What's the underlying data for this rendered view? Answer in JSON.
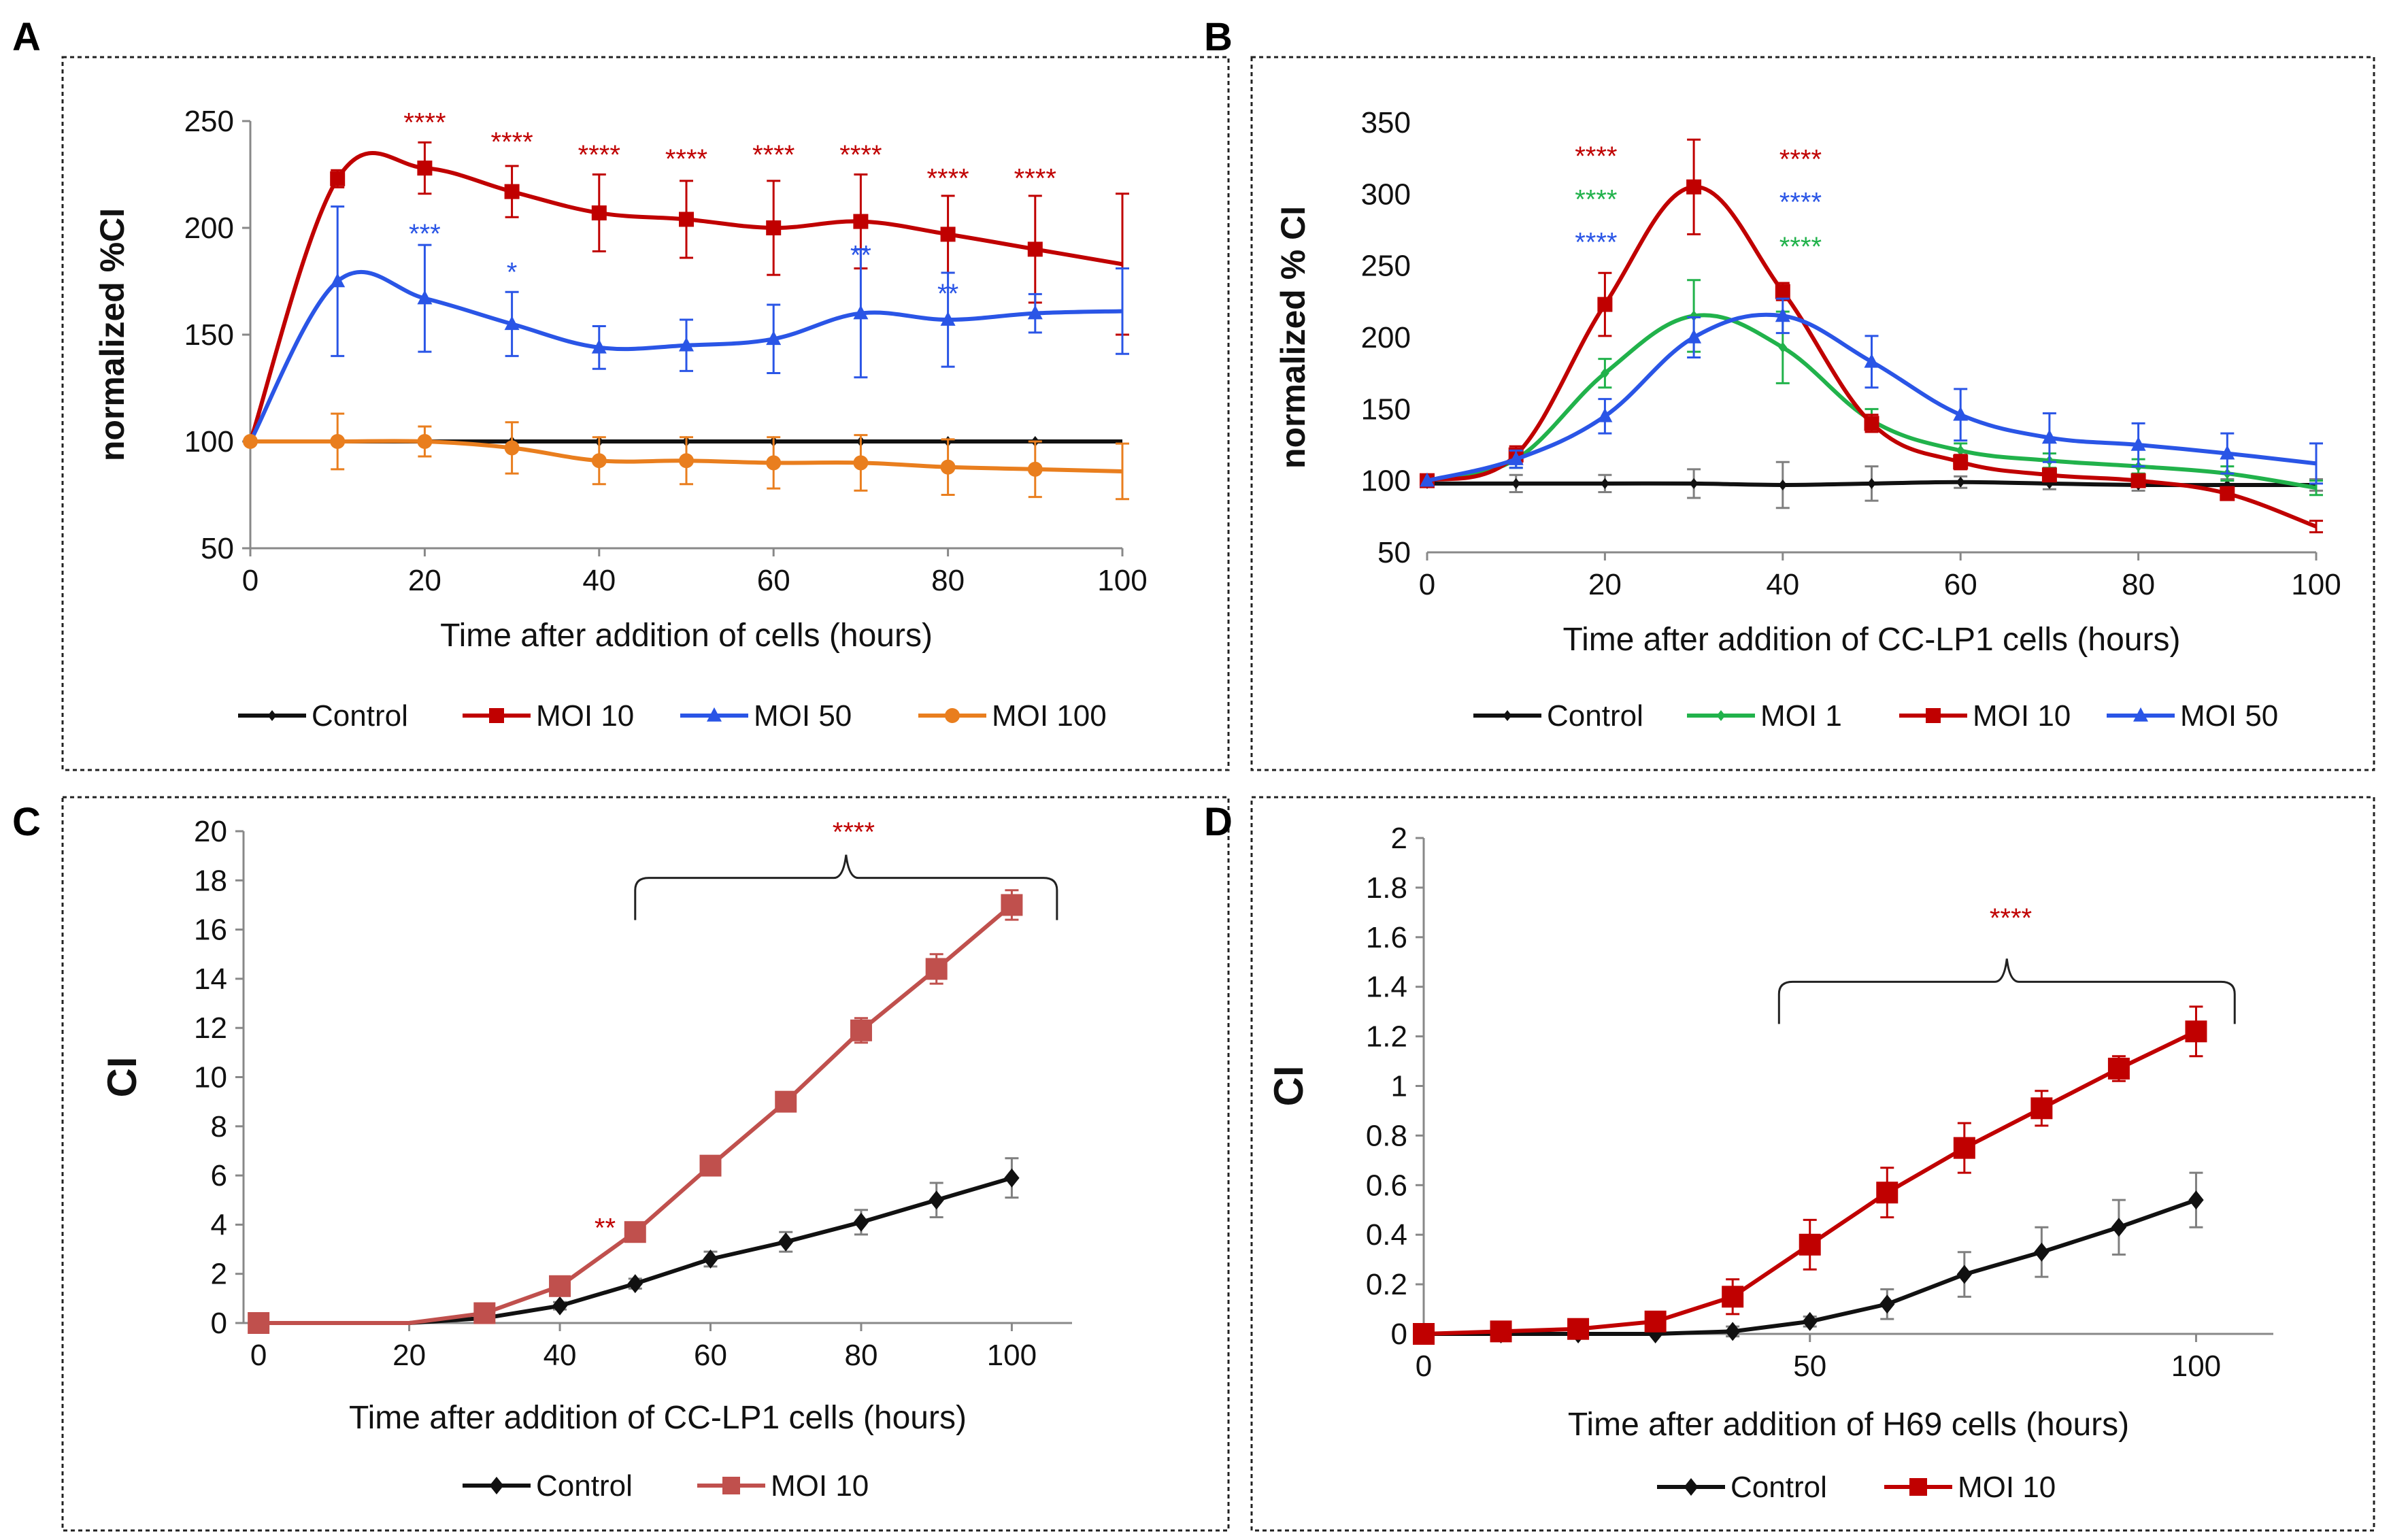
{
  "colors": {
    "control": "#111111",
    "control_err": "#7f7f7f",
    "moi1": "#21b24b",
    "moi10": "#c00000",
    "moi10_c": "#c0504d",
    "moi50": "#2a55e6",
    "moi100": "#e97e1e"
  },
  "chart_data": [
    {
      "panel": "A",
      "type": "line",
      "xlabel": "Time after addition of cells (hours)",
      "ylabel": "normalized %CI",
      "xlim": [
        0,
        100
      ],
      "ylim": [
        50,
        250
      ],
      "xticks": [
        0,
        20,
        40,
        60,
        80,
        100
      ],
      "yticks": [
        50,
        100,
        150,
        200,
        250
      ],
      "series": [
        {
          "name": "Control",
          "color": "control",
          "marker": "diamond",
          "x": [
            0,
            10,
            20,
            30,
            40,
            50,
            60,
            70,
            80,
            90,
            100
          ],
          "y": [
            100,
            100,
            100,
            100,
            100,
            100,
            100,
            100,
            100,
            100,
            100
          ],
          "marker_x": [
            0,
            10,
            20,
            30,
            40,
            50,
            60,
            70,
            80,
            90
          ],
          "err": [
            0,
            0,
            0,
            0,
            0,
            0,
            0,
            0,
            0,
            0,
            0
          ]
        },
        {
          "name": "MOI 10",
          "color": "moi10",
          "marker": "square",
          "x": [
            0,
            10,
            20,
            30,
            40,
            50,
            60,
            70,
            80,
            90,
            100
          ],
          "y": [
            100,
            223,
            228,
            217,
            207,
            204,
            200,
            203,
            197,
            190,
            183
          ],
          "marker_x": [
            10,
            20,
            30,
            40,
            50,
            60,
            70,
            80,
            90
          ],
          "err": [
            0,
            4,
            12,
            12,
            18,
            18,
            22,
            22,
            18,
            25,
            33
          ]
        },
        {
          "name": "MOI 50",
          "color": "moi50",
          "marker": "triangle",
          "x": [
            0,
            10,
            20,
            30,
            40,
            50,
            60,
            70,
            80,
            90,
            100
          ],
          "y": [
            100,
            175,
            167,
            155,
            144,
            145,
            148,
            160,
            157,
            160,
            161
          ],
          "marker_x": [
            10,
            20,
            30,
            40,
            50,
            60,
            70,
            80,
            90
          ],
          "err": [
            0,
            35,
            25,
            15,
            10,
            12,
            16,
            30,
            22,
            9,
            20
          ]
        },
        {
          "name": "MOI 100",
          "color": "moi100",
          "marker": "circle",
          "x": [
            0,
            10,
            20,
            30,
            40,
            50,
            60,
            70,
            80,
            90,
            100
          ],
          "y": [
            100,
            100,
            100,
            97,
            91,
            91,
            90,
            90,
            88,
            87,
            86
          ],
          "marker_x": [
            0,
            10,
            20,
            30,
            40,
            50,
            60,
            70,
            80,
            90
          ],
          "err": [
            0,
            13,
            7,
            12,
            11,
            11,
            12,
            13,
            13,
            13,
            13
          ]
        }
      ],
      "annotations": [
        {
          "x": 20,
          "y": 245,
          "text": "****",
          "color": "moi10"
        },
        {
          "x": 30,
          "y": 236,
          "text": "****",
          "color": "moi10"
        },
        {
          "x": 40,
          "y": 230,
          "text": "****",
          "color": "moi10"
        },
        {
          "x": 50,
          "y": 228,
          "text": "****",
          "color": "moi10"
        },
        {
          "x": 60,
          "y": 230,
          "text": "****",
          "color": "moi10"
        },
        {
          "x": 70,
          "y": 230,
          "text": "****",
          "color": "moi10"
        },
        {
          "x": 80,
          "y": 219,
          "text": "****",
          "color": "moi10"
        },
        {
          "x": 90,
          "y": 219,
          "text": "****",
          "color": "moi10"
        },
        {
          "x": 20,
          "y": 193,
          "text": "***",
          "color": "moi50"
        },
        {
          "x": 30,
          "y": 175,
          "text": "*",
          "color": "moi50"
        },
        {
          "x": 70,
          "y": 183,
          "text": "**",
          "color": "moi50"
        },
        {
          "x": 80,
          "y": 165,
          "text": "**",
          "color": "moi50"
        }
      ]
    },
    {
      "panel": "B",
      "type": "line",
      "xlabel": "Time after addition of CC-LP1 cells (hours)",
      "ylabel": "normalized % CI",
      "xlim": [
        0,
        100
      ],
      "ylim": [
        50,
        350
      ],
      "xticks": [
        0,
        20,
        40,
        60,
        80,
        100
      ],
      "yticks": [
        50,
        100,
        150,
        200,
        250,
        300,
        350
      ],
      "series": [
        {
          "name": "Control",
          "color": "control",
          "marker": "diamond",
          "x": [
            0,
            10,
            20,
            30,
            40,
            50,
            60,
            70,
            80,
            90,
            100
          ],
          "y": [
            98,
            98,
            98,
            98,
            97,
            98,
            99,
            98,
            97,
            97,
            97
          ],
          "marker_x": [
            0,
            10,
            20,
            30,
            40,
            50,
            60,
            70,
            80,
            90
          ],
          "err": [
            0,
            6,
            6,
            10,
            16,
            12,
            4,
            4,
            4,
            4,
            4
          ]
        },
        {
          "name": "MOI 1",
          "color": "moi1",
          "marker": "diamond",
          "x": [
            0,
            10,
            20,
            30,
            40,
            50,
            60,
            70,
            80,
            90,
            100
          ],
          "y": [
            100,
            115,
            175,
            215,
            193,
            142,
            121,
            114,
            110,
            105,
            95
          ],
          "marker_x": [
            0,
            10,
            20,
            30,
            40,
            50,
            60,
            70,
            80,
            90
          ],
          "err": [
            0,
            6,
            10,
            25,
            25,
            8,
            5,
            5,
            5,
            5,
            5
          ]
        },
        {
          "name": "MOI 10",
          "color": "moi10",
          "marker": "square",
          "x": [
            0,
            10,
            20,
            30,
            40,
            50,
            60,
            70,
            80,
            90,
            100
          ],
          "y": [
            100,
            118,
            223,
            305,
            232,
            140,
            113,
            104,
            100,
            91,
            68
          ],
          "marker_x": [
            0,
            10,
            20,
            30,
            40,
            50,
            60,
            70,
            80,
            90
          ],
          "err": [
            0,
            6,
            22,
            33,
            6,
            6,
            5,
            4,
            4,
            4,
            4
          ]
        },
        {
          "name": "MOI 50",
          "color": "moi50",
          "marker": "triangle",
          "x": [
            0,
            10,
            20,
            30,
            40,
            50,
            60,
            70,
            80,
            90,
            100
          ],
          "y": [
            100,
            115,
            145,
            200,
            215,
            183,
            146,
            130,
            125,
            119,
            112
          ],
          "marker_x": [
            0,
            10,
            20,
            30,
            40,
            50,
            60,
            70,
            80,
            90
          ],
          "err": [
            0,
            6,
            12,
            14,
            12,
            18,
            18,
            17,
            15,
            14,
            14
          ]
        }
      ],
      "annotations": [
        {
          "x": 19,
          "y": 320,
          "text": "****",
          "color": "moi10"
        },
        {
          "x": 19,
          "y": 290,
          "text": "****",
          "color": "moi1"
        },
        {
          "x": 19,
          "y": 260,
          "text": "****",
          "color": "moi50"
        },
        {
          "x": 42,
          "y": 318,
          "text": "****",
          "color": "moi10"
        },
        {
          "x": 42,
          "y": 288,
          "text": "****",
          "color": "moi50"
        },
        {
          "x": 42,
          "y": 257,
          "text": "****",
          "color": "moi1"
        }
      ]
    },
    {
      "panel": "C",
      "type": "line",
      "xlabel": "Time after addition of CC-LP1 cells (hours)",
      "ylabel": "CI",
      "xlim": [
        -2,
        108
      ],
      "ylim": [
        0,
        20
      ],
      "xticks": [
        0,
        20,
        40,
        60,
        80,
        100
      ],
      "yticks": [
        0,
        2,
        4,
        6,
        8,
        10,
        12,
        14,
        16,
        18,
        20
      ],
      "series": [
        {
          "name": "Control",
          "color": "control",
          "marker": "diamond",
          "x": [
            0,
            20,
            30,
            40,
            50,
            60,
            70,
            80,
            90,
            100
          ],
          "y": [
            0,
            0,
            0.2,
            0.7,
            1.6,
            2.6,
            3.3,
            4.1,
            5.0,
            5.9
          ],
          "marker_x": [
            0,
            40,
            50,
            60,
            70,
            80,
            90,
            100
          ],
          "err": [
            0,
            0,
            0,
            0.15,
            0.2,
            0.3,
            0.4,
            0.5,
            0.7,
            0.8
          ]
        },
        {
          "name": "MOI 10",
          "color": "moi10_c",
          "marker": "square",
          "x": [
            0,
            20,
            30,
            40,
            50,
            60,
            70,
            80,
            90,
            100
          ],
          "y": [
            0,
            0,
            0.4,
            1.5,
            3.7,
            6.4,
            9.0,
            11.9,
            14.4,
            17.0
          ],
          "marker_x": [
            0,
            30,
            40,
            50,
            60,
            70,
            80,
            90,
            100
          ],
          "err": [
            0,
            0,
            0,
            0.15,
            0.2,
            0.2,
            0.25,
            0.5,
            0.6,
            0.6
          ]
        }
      ],
      "annotations": [
        {
          "x": 79,
          "y": 19.6,
          "text": "****",
          "color": "moi10"
        },
        {
          "x": 46,
          "y": 3.5,
          "text": "**",
          "color": "moi10"
        }
      ],
      "bracket": {
        "x1": 50,
        "x2": 106,
        "y": 18.1
      }
    },
    {
      "panel": "D",
      "type": "line",
      "xlabel": "Time after addition of H69 cells (hours)",
      "ylabel": "CI",
      "xlim": [
        0,
        110
      ],
      "ylim": [
        0,
        2
      ],
      "xticks": [
        0,
        50,
        100
      ],
      "yticks": [
        0,
        0.2,
        0.4,
        0.6,
        0.8,
        1,
        1.2,
        1.4,
        1.6,
        1.8,
        2
      ],
      "series": [
        {
          "name": "Control",
          "color": "control",
          "marker": "diamond",
          "x": [
            0,
            10,
            20,
            30,
            40,
            50,
            60,
            70,
            80,
            90,
            100
          ],
          "y": [
            0,
            0,
            0,
            0,
            0.01,
            0.05,
            0.12,
            0.24,
            0.33,
            0.43,
            0.54
          ],
          "marker_x": [
            0,
            10,
            20,
            30,
            40,
            50,
            60,
            70,
            80,
            90,
            100
          ],
          "err": [
            0,
            0,
            0,
            0,
            0.02,
            0.02,
            0.06,
            0.09,
            0.1,
            0.11,
            0.11
          ]
        },
        {
          "name": "MOI 10",
          "color": "moi10",
          "marker": "square",
          "x": [
            0,
            10,
            20,
            30,
            40,
            50,
            60,
            70,
            80,
            90,
            100
          ],
          "y": [
            0,
            0.01,
            0.02,
            0.05,
            0.15,
            0.36,
            0.57,
            0.75,
            0.91,
            1.07,
            1.22
          ],
          "marker_x": [
            0,
            10,
            20,
            30,
            40,
            50,
            60,
            70,
            80,
            90,
            100
          ],
          "err": [
            0,
            0,
            0,
            0.02,
            0.07,
            0.1,
            0.1,
            0.1,
            0.07,
            0.05,
            0.1
          ]
        }
      ],
      "annotations": [
        {
          "x": 76,
          "y": 1.64,
          "text": "****",
          "color": "moi10"
        }
      ],
      "bracket": {
        "x1": 46,
        "x2": 105,
        "y": 1.42
      }
    }
  ]
}
